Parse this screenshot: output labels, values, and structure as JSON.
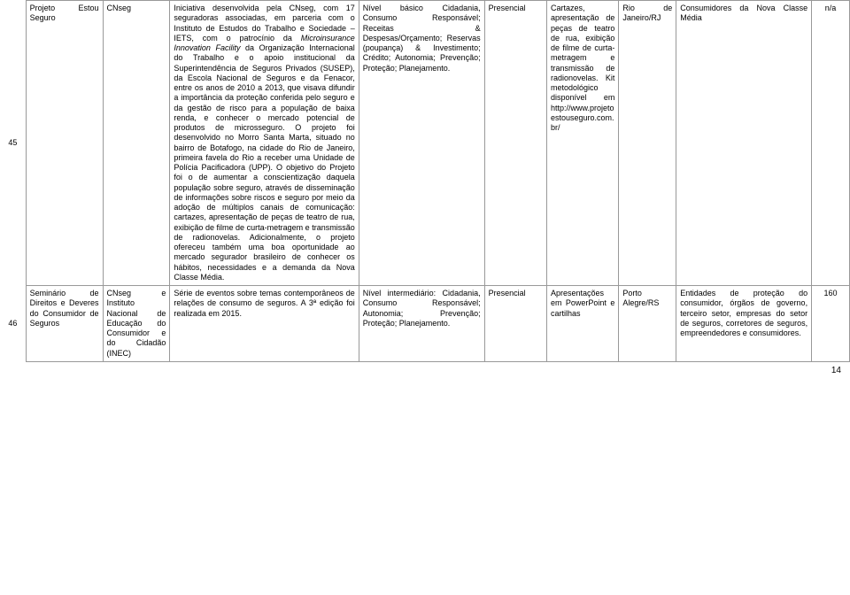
{
  "rows": [
    {
      "idx": "45",
      "name": "Projeto Estou Seguro",
      "org": "CNseg",
      "desc_parts": [
        {
          "t": "Iniciativa desenvolvida pela CNseg, com 17 seguradoras associadas, em parceria com o Instituto de Estudos do Trabalho e Sociedade – IETS, com o patrocínio da ",
          "i": false
        },
        {
          "t": "Microinsurance Innovation Facility",
          "i": true
        },
        {
          "t": " da Organização Internacional do Trabalho e o apoio institucional da Superintendência de Seguros Privados (SUSEP), da Escola Nacional de Seguros e da Fenacor, entre os anos de 2010 a 2013, que visava difundir a importância da proteção conferida pelo seguro e da gestão de risco para a população de baixa renda, e conhecer o mercado potencial de produtos de microsseguro. O projeto foi desenvolvido no Morro Santa Marta, situado no bairro de Botafogo, na cidade do Rio de Janeiro, primeira favela do Rio a receber uma Unidade de Polícia Pacificadora (UPP). O objetivo do Projeto foi o de aumentar a conscientização daquela população sobre seguro, através de disseminação de informações sobre riscos e seguro por meio da adoção de múltiplos canais de comunicação: cartazes, apresentação de peças de teatro de rua, exibição de filme de curta-metragem e transmissão de radionovelas. Adicionalmente, o projeto ofereceu também uma boa oportunidade ao mercado segurador brasileiro de conhecer os hábitos, necessidades e a demanda da Nova Classe Média.",
          "i": false
        }
      ],
      "topics": "Nível básico Cidadania, Consumo Responsável; Receitas & Despesas/Orçamento; Reservas (poupança) & Investimento; Crédito; Autonomia; Prevenção; Proteção; Planejamento.",
      "format": "Presencial",
      "materials": "Cartazes, apresentação de peças de teatro de rua, exibição de filme de curta-metragem e transmissão de radionovelas. Kit metodológico disponível em http://www.projetoestouseguro.com.br/",
      "loc": "Rio de Janeiro/RJ",
      "aud": "Consumidores da Nova Classe Média",
      "num": "n/a"
    },
    {
      "idx": "46",
      "name": "Seminário de Direitos e Deveres do Consumidor de Seguros",
      "org": "CNseg e Instituto Nacional de Educação do Consumidor e do Cidadão (INEC)",
      "desc_parts": [
        {
          "t": "Série de eventos sobre temas contemporâneos de relações de consumo de seguros. A 3ª edição foi realizada em 2015.",
          "i": false
        }
      ],
      "topics": "Nível intermediário: Cidadania, Consumo Responsável; Autonomia; Prevenção; Proteção; Planejamento.",
      "format": "Presencial",
      "materials": "Apresentações em PowerPoint e cartilhas",
      "loc": "Porto Alegre/RS",
      "aud": "Entidades de proteção do consumidor, órgãos de governo, terceiro setor, empresas do setor de seguros, corretores de seguros, empreendedores e consumidores.",
      "num": "160"
    }
  ],
  "page_number": "14"
}
